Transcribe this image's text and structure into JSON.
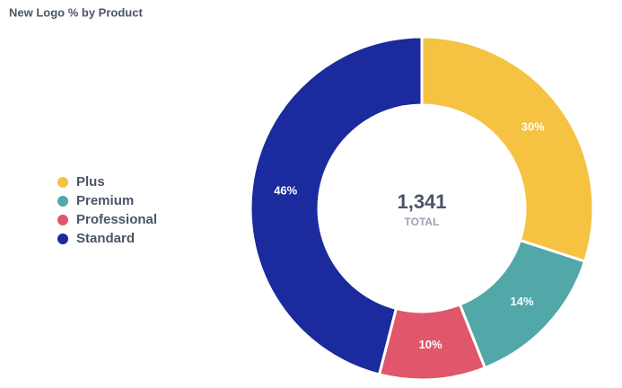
{
  "chart_data": {
    "type": "donut",
    "title": "New Logo % by Product",
    "categories": [
      "Plus",
      "Premium",
      "Professional",
      "Standard"
    ],
    "values": [
      30,
      14,
      10,
      46
    ],
    "value_labels": [
      "30%",
      "14%",
      "10%",
      "46%"
    ],
    "colors": [
      "#f5c242",
      "#52a7a8",
      "#e0566b",
      "#1b2a9c"
    ],
    "center_value": "1,341",
    "center_caption": "TOTAL",
    "legend": "left"
  }
}
